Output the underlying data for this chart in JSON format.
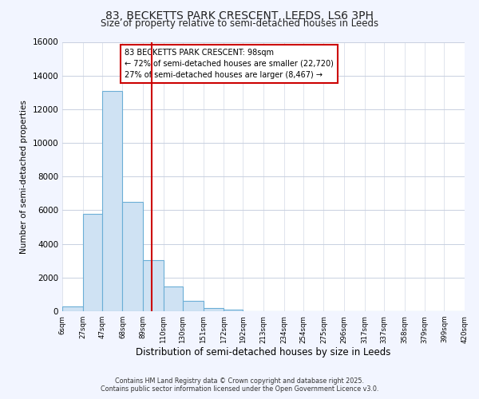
{
  "title": "83, BECKETTS PARK CRESCENT, LEEDS, LS6 3PH",
  "subtitle": "Size of property relative to semi-detached houses in Leeds",
  "xlabel": "Distribution of semi-detached houses by size in Leeds",
  "ylabel": "Number of semi-detached properties",
  "bar_edges": [
    6,
    27,
    47,
    68,
    89,
    110,
    130,
    151,
    172,
    192,
    213,
    234,
    254,
    275,
    296,
    317,
    337,
    358,
    379,
    399,
    420
  ],
  "bar_values": [
    300,
    5800,
    13100,
    6500,
    3050,
    1450,
    600,
    200,
    100,
    0,
    0,
    0,
    0,
    0,
    0,
    0,
    0,
    0,
    0,
    0
  ],
  "bar_color": "#cfe2f3",
  "bar_edge_color": "#6baed6",
  "vline_x": 98,
  "vline_color": "#cc0000",
  "annotation_title": "83 BECKETTS PARK CRESCENT: 98sqm",
  "annotation_line1": "← 72% of semi-detached houses are smaller (22,720)",
  "annotation_line2": "27% of semi-detached houses are larger (8,467) →",
  "ylim": [
    0,
    16000
  ],
  "yticks": [
    0,
    2000,
    4000,
    6000,
    8000,
    10000,
    12000,
    14000,
    16000
  ],
  "footer_line1": "Contains HM Land Registry data © Crown copyright and database right 2025.",
  "footer_line2": "Contains public sector information licensed under the Open Government Licence v3.0.",
  "bg_color": "#f2f5ff",
  "plot_bg_color": "#ffffff",
  "grid_color": "#c8d0e0"
}
